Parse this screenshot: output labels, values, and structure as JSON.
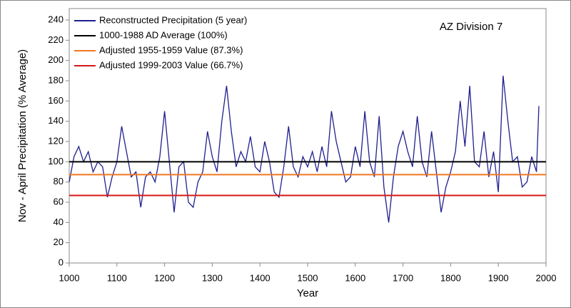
{
  "chart_data": {
    "type": "line",
    "annotation": "AZ Division 7",
    "xlabel": "Year",
    "ylabel": "Nov - April Precipitation (% Average)",
    "x": [
      1000,
      1010,
      1020,
      1030,
      1040,
      1050,
      1060,
      1070,
      1080,
      1090,
      1100,
      1110,
      1120,
      1130,
      1140,
      1150,
      1160,
      1170,
      1180,
      1190,
      1200,
      1210,
      1220,
      1230,
      1240,
      1250,
      1260,
      1270,
      1280,
      1290,
      1300,
      1310,
      1320,
      1330,
      1340,
      1350,
      1360,
      1370,
      1380,
      1390,
      1400,
      1410,
      1420,
      1430,
      1440,
      1450,
      1460,
      1470,
      1480,
      1490,
      1500,
      1510,
      1520,
      1530,
      1540,
      1550,
      1560,
      1570,
      1580,
      1590,
      1600,
      1610,
      1620,
      1630,
      1640,
      1650,
      1660,
      1670,
      1680,
      1690,
      1700,
      1710,
      1720,
      1730,
      1740,
      1750,
      1760,
      1770,
      1780,
      1790,
      1800,
      1810,
      1820,
      1830,
      1840,
      1850,
      1860,
      1870,
      1880,
      1890,
      1900,
      1910,
      1920,
      1930,
      1940,
      1950,
      1960,
      1970,
      1980,
      1985
    ],
    "series": [
      {
        "name": "Reconstructed Precipitation (5 year)",
        "color": "#1f1f8f",
        "values": [
          80,
          105,
          115,
          100,
          110,
          90,
          100,
          95,
          65,
          85,
          100,
          135,
          110,
          85,
          90,
          55,
          85,
          90,
          80,
          105,
          150,
          100,
          50,
          95,
          100,
          60,
          55,
          80,
          90,
          130,
          105,
          90,
          140,
          175,
          130,
          95,
          110,
          100,
          125,
          95,
          90,
          120,
          100,
          70,
          65,
          95,
          135,
          95,
          85,
          105,
          95,
          110,
          90,
          115,
          95,
          150,
          120,
          100,
          80,
          85,
          115,
          95,
          150,
          100,
          85,
          145,
          75,
          40,
          85,
          115,
          130,
          110,
          95,
          145,
          100,
          85,
          130,
          90,
          50,
          75,
          90,
          110,
          160,
          115,
          175,
          100,
          95,
          130,
          85,
          110,
          70,
          185,
          140,
          100,
          105,
          75,
          80,
          105,
          90,
          155
        ]
      }
    ],
    "reference_lines": [
      {
        "name": "1000-1988 AD Average (100%)",
        "color": "#000000",
        "value": 100
      },
      {
        "name": "Adjusted 1955-1959 Value (87.3%)",
        "color": "#f07820",
        "value": 87.3
      },
      {
        "name": "Adjusted 1999-2003 Value (66.7%)",
        "color": "#d81818",
        "value": 66.7
      }
    ],
    "xlim": [
      1000,
      2000
    ],
    "xticks": [
      1000,
      1100,
      1200,
      1300,
      1400,
      1500,
      1600,
      1700,
      1800,
      1900,
      2000
    ],
    "ylim": [
      0,
      240
    ],
    "yticks": [
      0,
      20,
      40,
      60,
      80,
      100,
      120,
      140,
      160,
      180,
      200,
      220,
      240
    ]
  }
}
